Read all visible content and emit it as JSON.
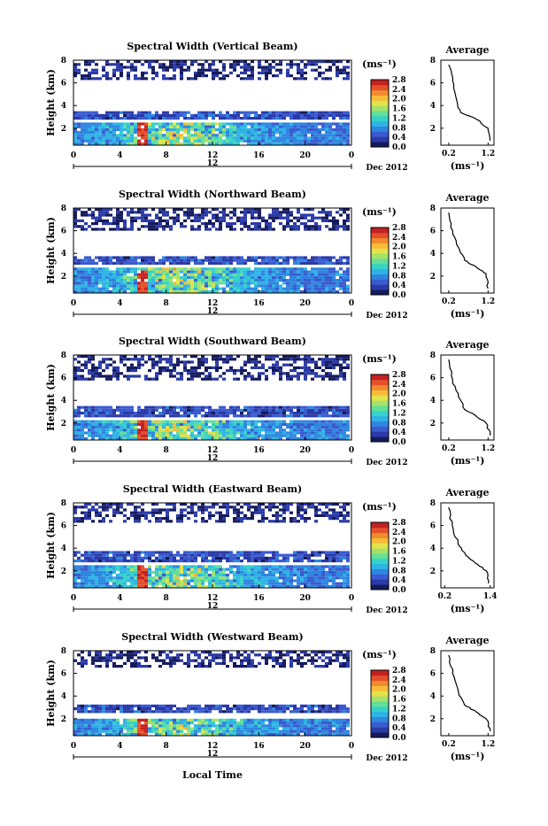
{
  "figure": {
    "date_label": "Dec 2012",
    "xlabel": "Local Time",
    "ylabel": "Height (km)",
    "colorbar_unit": "(ms⁻¹)",
    "average_title": "Average",
    "average_unit": "(ms⁻¹)",
    "colors": {
      "sky": "#ffffff",
      "colormap": [
        "#151b5a",
        "#2b3aa8",
        "#3a5bd0",
        "#2f86e0",
        "#2fb3e6",
        "#36d2c8",
        "#63df9a",
        "#a4e36a",
        "#e2e24a",
        "#f6bb39",
        "#f08a2d",
        "#e4502b",
        "#c42121"
      ]
    }
  },
  "chart_data": [
    {
      "type": "heatmap",
      "title": "Spectral Width (Vertical Beam)",
      "xticks": [
        "0",
        "4",
        "8",
        "12",
        "16",
        "20",
        "0"
      ],
      "xsub": "12",
      "yticks": [
        "2",
        "4",
        "6",
        "8"
      ],
      "xlim": [
        0,
        24
      ],
      "ylim": [
        0.5,
        8
      ],
      "colorbar_ticks": [
        "0.0",
        "0.4",
        "0.8",
        "1.2",
        "1.6",
        "2.0",
        "2.4",
        "2.8"
      ],
      "colorbar_range": [
        0,
        2.8
      ],
      "layers": {
        "upper_base": 6.2,
        "mid_base": 2.6,
        "mid_top": 3.4,
        "ground_top": 2.4
      },
      "profile": {
        "x": [
          0.2,
          0.3,
          0.4,
          0.5,
          0.9,
          1.2,
          1.25
        ],
        "y": [
          7.6,
          6.2,
          4.5,
          3.4,
          2.8,
          2.0,
          0.9
        ],
        "xlim": [
          0.0,
          1.35
        ],
        "xticks": [
          "0.2",
          "1.2"
        ],
        "yticks": [
          "2",
          "4",
          "6",
          "8"
        ]
      }
    },
    {
      "type": "heatmap",
      "title": "Spectral Width (Northward Beam)",
      "xticks": [
        "0",
        "4",
        "8",
        "12",
        "16",
        "20",
        "0"
      ],
      "xsub": "12",
      "yticks": [
        "2",
        "4",
        "6",
        "8"
      ],
      "xlim": [
        0,
        24
      ],
      "ylim": [
        0.5,
        8
      ],
      "colorbar_ticks": [
        "0.0",
        "0.4",
        "0.8",
        "1.2",
        "1.6",
        "2.0",
        "2.4",
        "2.8"
      ],
      "colorbar_range": [
        0,
        2.8
      ],
      "layers": {
        "upper_base": 6.0,
        "mid_base": 2.8,
        "mid_top": 3.6,
        "ground_top": 2.6
      },
      "profile": {
        "x": [
          0.2,
          0.3,
          0.45,
          0.6,
          0.9,
          1.15,
          1.2
        ],
        "y": [
          7.6,
          6.0,
          4.5,
          3.4,
          2.8,
          2.2,
          0.9
        ],
        "xlim": [
          0.0,
          1.35
        ],
        "xticks": [
          "0.2",
          "1.2"
        ],
        "yticks": [
          "2",
          "4",
          "6",
          "8"
        ]
      }
    },
    {
      "type": "heatmap",
      "title": "Spectral Width (Southward Beam)",
      "xticks": [
        "0",
        "4",
        "8",
        "12",
        "16",
        "20",
        "0"
      ],
      "xsub": "12",
      "yticks": [
        "2",
        "4",
        "6",
        "8"
      ],
      "xlim": [
        0,
        24
      ],
      "ylim": [
        0.5,
        8
      ],
      "colorbar_ticks": [
        "0.0",
        "0.4",
        "0.8",
        "1.2",
        "1.6",
        "2.0",
        "2.4",
        "2.8"
      ],
      "colorbar_range": [
        0,
        2.8
      ],
      "layers": {
        "upper_base": 5.6,
        "mid_base": 2.4,
        "mid_top": 3.4,
        "ground_top": 2.2
      },
      "profile": {
        "x": [
          0.2,
          0.3,
          0.45,
          0.6,
          0.9,
          1.15,
          1.25
        ],
        "y": [
          7.6,
          5.8,
          4.3,
          3.2,
          2.6,
          2.0,
          0.9
        ],
        "xlim": [
          0.0,
          1.35
        ],
        "xticks": [
          "0.2",
          "1.2"
        ],
        "yticks": [
          "2",
          "4",
          "6",
          "8"
        ]
      }
    },
    {
      "type": "heatmap",
      "title": "Spectral Width (Eastward Beam)",
      "xticks": [
        "0",
        "4",
        "8",
        "12",
        "16",
        "20",
        "0"
      ],
      "xsub": "12",
      "yticks": [
        "2",
        "4",
        "6",
        "8"
      ],
      "xlim": [
        0,
        24
      ],
      "ylim": [
        0.5,
        8
      ],
      "colorbar_ticks": [
        "0.0",
        "0.4",
        "0.8",
        "1.2",
        "1.6",
        "2.0",
        "2.4",
        "2.8"
      ],
      "colorbar_range": [
        0,
        2.8
      ],
      "layers": {
        "upper_base": 6.2,
        "mid_base": 2.6,
        "mid_top": 3.6,
        "ground_top": 2.4
      },
      "profile": {
        "x": [
          0.3,
          0.4,
          0.55,
          0.75,
          1.0,
          1.3,
          1.35
        ],
        "y": [
          7.6,
          6.0,
          4.4,
          3.4,
          2.7,
          2.0,
          0.9
        ],
        "xlim": [
          0.1,
          1.5
        ],
        "xticks": [
          "0.2",
          "1.4"
        ],
        "yticks": [
          "2",
          "4",
          "6",
          "8"
        ]
      }
    },
    {
      "type": "heatmap",
      "title": "Spectral Width (Westward Beam)",
      "xticks": [
        "0",
        "4",
        "8",
        "12",
        "16",
        "20",
        "0"
      ],
      "xsub": "12",
      "yticks": [
        "2",
        "4",
        "6",
        "8"
      ],
      "xlim": [
        0,
        24
      ],
      "ylim": [
        0.5,
        8
      ],
      "colorbar_ticks": [
        "0.0",
        "0.4",
        "0.8",
        "1.2",
        "1.6",
        "2.0",
        "2.4",
        "2.8"
      ],
      "colorbar_range": [
        0,
        2.8
      ],
      "layers": {
        "upper_base": 6.4,
        "mid_base": 2.4,
        "mid_top": 3.2,
        "ground_top": 2.0
      },
      "profile": {
        "x": [
          0.2,
          0.3,
          0.45,
          0.6,
          0.9,
          1.15,
          1.25
        ],
        "y": [
          7.6,
          6.0,
          4.3,
          3.2,
          2.6,
          2.0,
          0.9
        ],
        "xlim": [
          0.0,
          1.35
        ],
        "xticks": [
          "0.2",
          "1.2"
        ],
        "yticks": [
          "2",
          "4",
          "6",
          "8"
        ]
      }
    }
  ]
}
